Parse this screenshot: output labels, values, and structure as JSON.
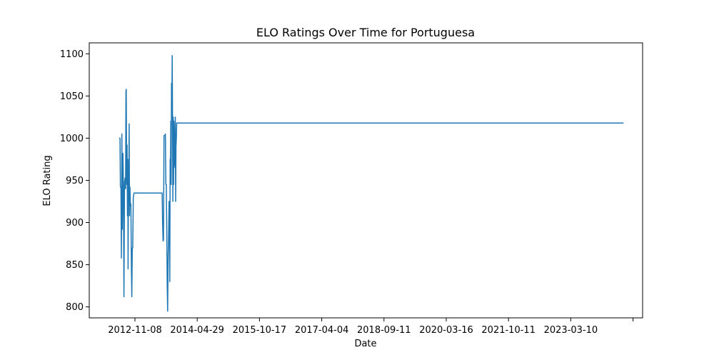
{
  "chart_data": {
    "type": "line",
    "title": "ELO Ratings Over Time for Portuguesa",
    "xlabel": "Date",
    "ylabel": "ELO Rating",
    "x_ticks": [
      "2012-11-08",
      "2014-04-29",
      "2015-10-17",
      "2017-04-04",
      "2018-09-11",
      "2020-03-16",
      "2021-10-11",
      "2023-03-10",
      ""
    ],
    "y_ticks": [
      "800",
      "850",
      "900",
      "950",
      "1000",
      "1050",
      "1100"
    ],
    "ylim": [
      787,
      1113
    ],
    "grid": false,
    "legend": "none",
    "series": [
      {
        "color": "#1f77b4",
        "points": [
          [
            "2012-06-24",
            1000
          ],
          [
            "2012-07-02",
            1000
          ],
          [
            "2012-07-05",
            942
          ],
          [
            "2012-07-10",
            942
          ],
          [
            "2012-07-14",
            858
          ],
          [
            "2012-07-18",
            1005
          ],
          [
            "2012-07-22",
            892
          ],
          [
            "2012-07-27",
            982
          ],
          [
            "2012-08-01",
            930
          ],
          [
            "2012-08-05",
            812
          ],
          [
            "2012-08-10",
            948
          ],
          [
            "2012-08-15",
            953
          ],
          [
            "2012-08-19",
            940
          ],
          [
            "2012-08-22",
            1055
          ],
          [
            "2012-08-25",
            1058
          ],
          [
            "2012-08-29",
            945
          ],
          [
            "2012-09-01",
            992
          ],
          [
            "2012-09-04",
            908
          ],
          [
            "2012-09-07",
            975
          ],
          [
            "2012-09-10",
            845
          ],
          [
            "2012-09-13",
            948
          ],
          [
            "2012-09-16",
            940
          ],
          [
            "2012-09-19",
            1017
          ],
          [
            "2012-09-22",
            908
          ],
          [
            "2012-09-26",
            942
          ],
          [
            "2012-09-30",
            920
          ],
          [
            "2012-10-04",
            922
          ],
          [
            "2012-10-08",
            850
          ],
          [
            "2012-10-12",
            812
          ],
          [
            "2012-10-16",
            870
          ],
          [
            "2012-10-20",
            870
          ],
          [
            "2012-10-25",
            930
          ],
          [
            "2012-10-31",
            935
          ],
          [
            "2013-07-01",
            935
          ],
          [
            "2013-07-05",
            900
          ],
          [
            "2013-07-09",
            878
          ],
          [
            "2013-07-13",
            880
          ],
          [
            "2013-07-17",
            1003
          ],
          [
            "2013-07-25",
            1003
          ],
          [
            "2013-07-29",
            1005
          ],
          [
            "2013-08-02",
            945
          ],
          [
            "2013-08-06",
            945
          ],
          [
            "2013-08-10",
            890
          ],
          [
            "2013-08-14",
            825
          ],
          [
            "2013-08-18",
            795
          ],
          [
            "2013-08-22",
            860
          ],
          [
            "2013-08-26",
            880
          ],
          [
            "2013-08-30",
            925
          ],
          [
            "2013-09-02",
            905
          ],
          [
            "2013-09-05",
            830
          ],
          [
            "2013-09-08",
            975
          ],
          [
            "2013-09-11",
            950
          ],
          [
            "2013-09-14",
            1020
          ],
          [
            "2013-09-17",
            945
          ],
          [
            "2013-09-20",
            1065
          ],
          [
            "2013-09-23",
            1040
          ],
          [
            "2013-09-26",
            1098
          ],
          [
            "2013-09-29",
            1010
          ],
          [
            "2013-10-02",
            925
          ],
          [
            "2013-10-05",
            1025
          ],
          [
            "2013-10-08",
            945
          ],
          [
            "2013-10-11",
            1020
          ],
          [
            "2013-10-14",
            1005
          ],
          [
            "2013-10-17",
            970
          ],
          [
            "2013-10-20",
            965
          ],
          [
            "2013-10-23",
            1025
          ],
          [
            "2013-10-26",
            925
          ],
          [
            "2013-10-29",
            990
          ],
          [
            "2013-11-01",
            1000
          ],
          [
            "2013-11-04",
            1018
          ],
          [
            "2024-06-01",
            1018
          ]
        ]
      }
    ]
  }
}
